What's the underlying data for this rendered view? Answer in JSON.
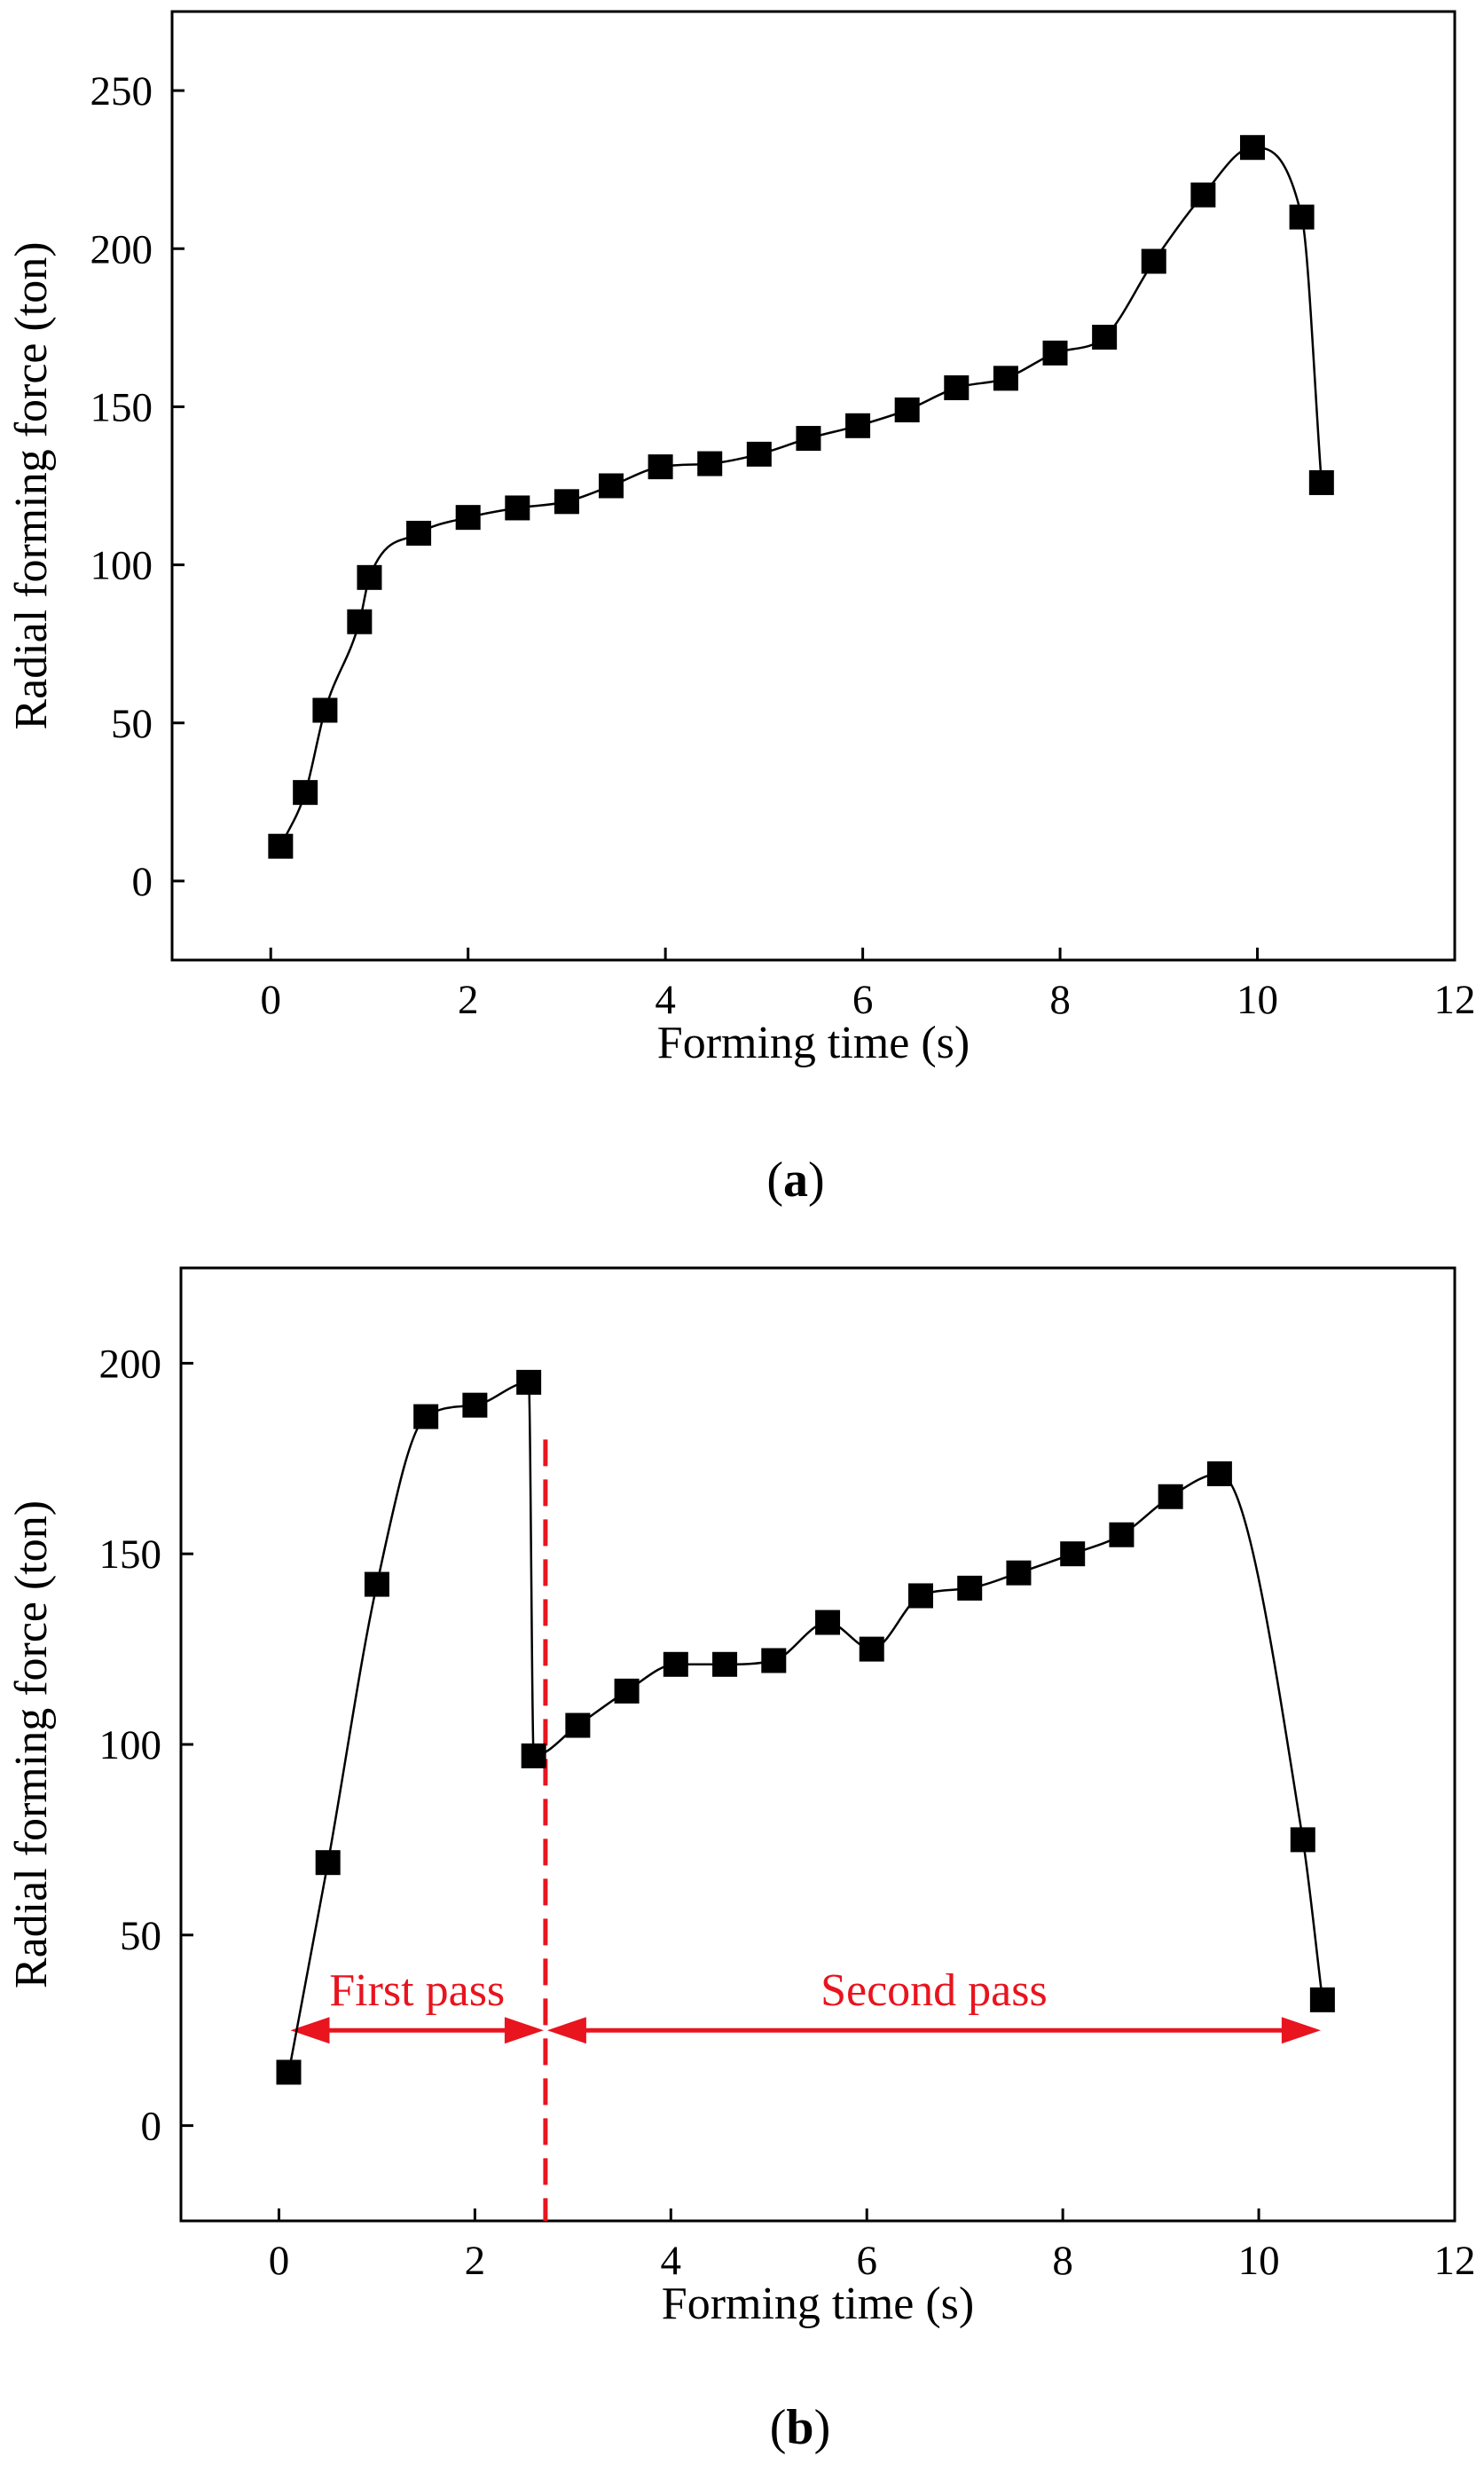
{
  "chart_data": [
    {
      "type": "scatter",
      "panel_label": "(a)",
      "panel_letter": "a",
      "xlabel": "Forming time (s)",
      "ylabel": "Radial forming force (ton)",
      "xlim": [
        -1,
        12
      ],
      "ylim": [
        -25,
        275
      ],
      "xticks": [
        0,
        2,
        4,
        6,
        8,
        10,
        12
      ],
      "yticks": [
        0,
        50,
        100,
        150,
        200,
        250
      ],
      "grid": false,
      "marker": "square",
      "fitted_curve": true,
      "x": [
        0.1,
        0.35,
        0.55,
        0.9,
        1.0,
        1.5,
        2.0,
        2.5,
        3.0,
        3.45,
        3.95,
        4.45,
        4.95,
        5.45,
        5.95,
        6.45,
        6.95,
        7.45,
        7.95,
        8.45,
        8.95,
        9.45,
        9.95,
        10.45,
        10.65
      ],
      "y": [
        11,
        28,
        54,
        82,
        96,
        110,
        115,
        118,
        120,
        125,
        131,
        132,
        135,
        140,
        144,
        149,
        156,
        159,
        167,
        172,
        196,
        217,
        232,
        210,
        126
      ],
      "annotations": []
    },
    {
      "type": "scatter",
      "panel_label": "(b)",
      "panel_letter": "b",
      "xlabel": "Forming time (s)",
      "ylabel": "Radial forming force (ton)",
      "xlim": [
        -1,
        12
      ],
      "ylim": [
        -25,
        225
      ],
      "xticks": [
        0,
        2,
        4,
        6,
        8,
        10,
        12
      ],
      "yticks": [
        0,
        50,
        100,
        150,
        200
      ],
      "grid": false,
      "marker": "square",
      "fitted_curve": true,
      "x": [
        0.1,
        0.5,
        1.0,
        1.5,
        2.0,
        2.55,
        2.6,
        3.05,
        3.55,
        4.05,
        4.55,
        5.05,
        5.6,
        6.05,
        6.55,
        7.05,
        7.55,
        8.1,
        8.6,
        9.1,
        9.6,
        10.45,
        10.65
      ],
      "y": [
        14,
        69,
        142,
        186,
        189,
        195,
        97,
        105,
        114,
        121,
        121,
        122,
        132,
        125,
        139,
        141,
        145,
        150,
        155,
        165,
        171,
        75,
        33
      ],
      "divider_x": 2.72,
      "annotations": [
        {
          "text": "First pass",
          "color": "#e8141e",
          "x_start": 0.1,
          "x_end": 2.72,
          "y": 25
        },
        {
          "text": "Second pass",
          "color": "#e8141e",
          "x_start": 2.72,
          "x_end": 10.65,
          "y": 25
        }
      ]
    }
  ]
}
